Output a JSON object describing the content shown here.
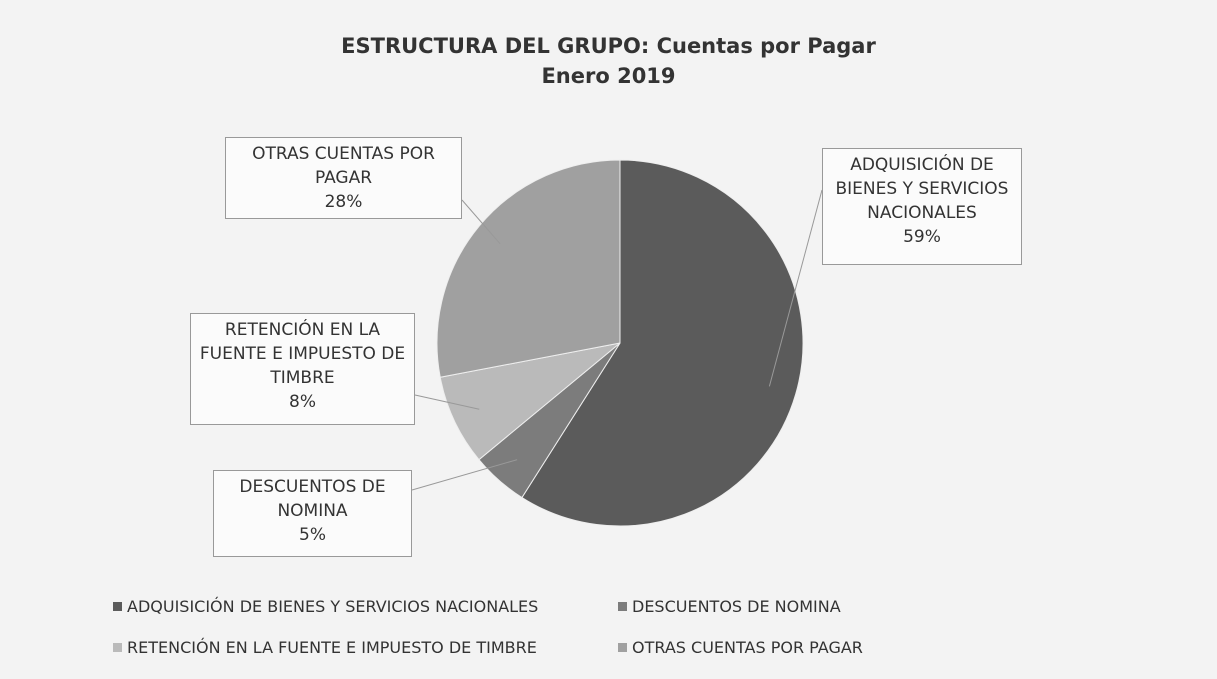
{
  "chart_data": {
    "type": "pie",
    "title": "ESTRUCTURA DEL GRUPO: Cuentas por Pagar",
    "subtitle": "Enero 2019",
    "categories": [
      "ADQUISICIÓN DE BIENES Y SERVICIOS NACIONALES",
      "DESCUENTOS DE NOMINA",
      "RETENCIÓN EN LA FUENTE E IMPUESTO DE TIMBRE",
      "OTRAS CUENTAS POR PAGAR"
    ],
    "values": [
      59,
      5,
      8,
      28
    ],
    "value_labels": [
      "59%",
      "5%",
      "8%",
      "28%"
    ],
    "colors": [
      "#5b5b5b",
      "#7c7c7c",
      "#bababa",
      "#a0a0a0"
    ],
    "legend": "bottom"
  }
}
